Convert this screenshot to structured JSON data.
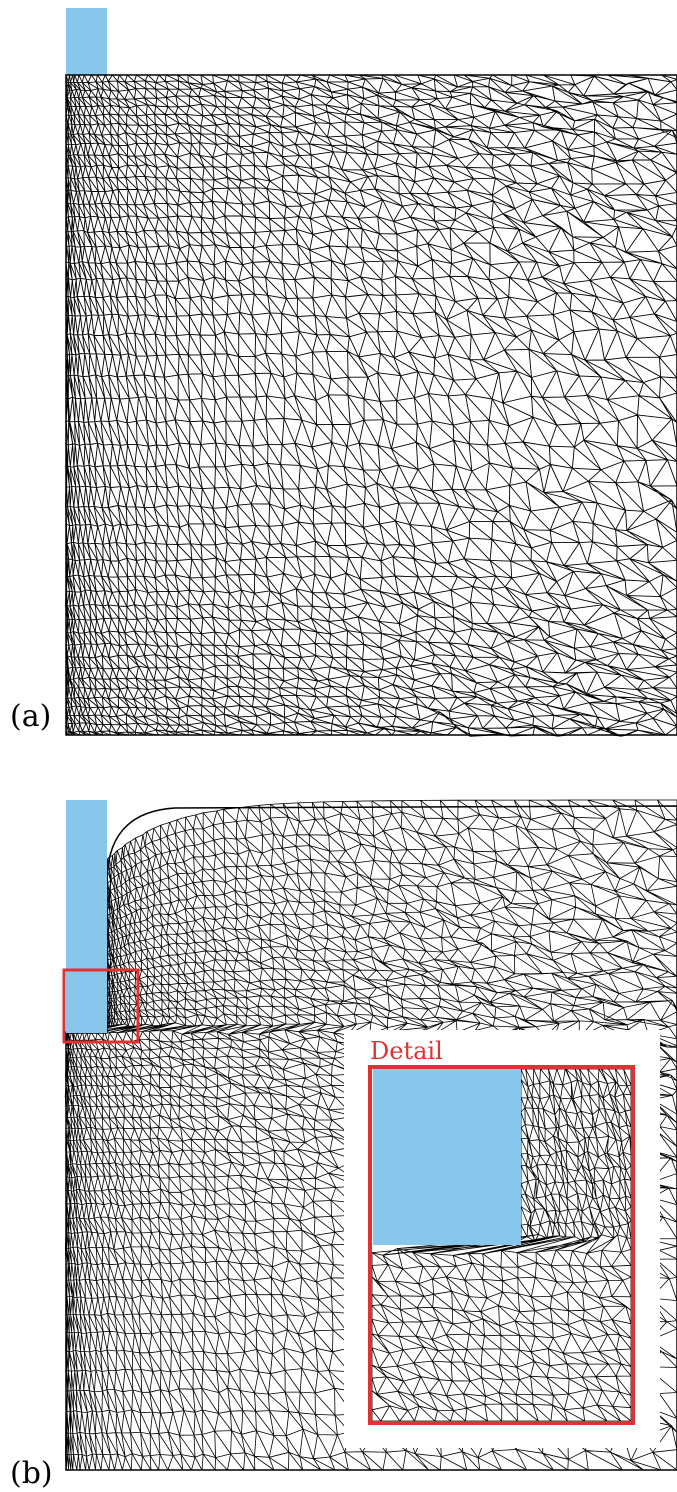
{
  "figure": {
    "colors": {
      "mesh": "#000000",
      "tool": "#89c6ec",
      "highlight": "#e03232",
      "background": "#ffffff"
    },
    "panels": [
      {
        "id": "a",
        "label": "(a)",
        "state": "undeformed mesh"
      },
      {
        "id": "b",
        "label": "(b)",
        "state": "deformed mesh with tool penetration"
      }
    ],
    "detail": {
      "label": "Detail"
    }
  }
}
